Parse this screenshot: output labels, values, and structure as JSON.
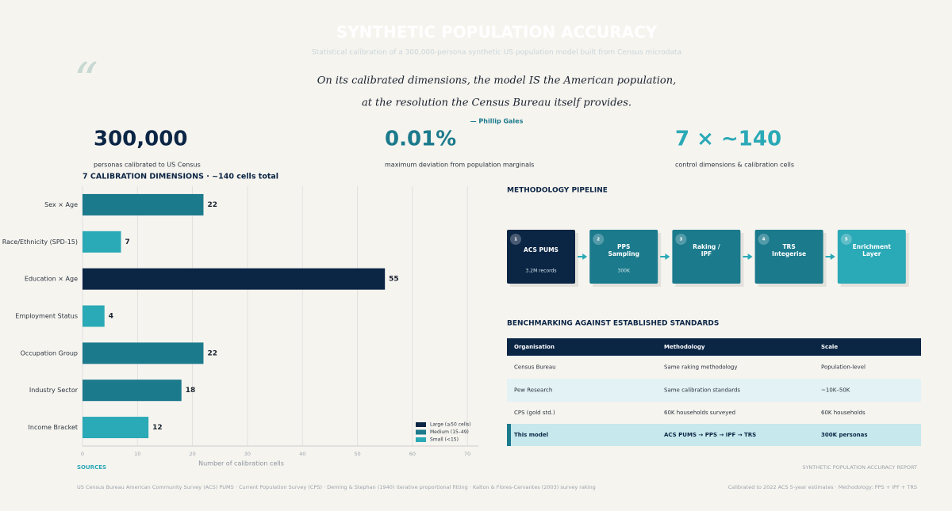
{
  "header": {
    "title": "SYNTHETIC POPULATION ACCURACY",
    "subtitle": "Statistical calibration of a 300,000-persona synthetic US population model built from Census microdata"
  },
  "quote": {
    "lines": [
      "On its calibrated dimensions, the model  IS  the American population,",
      "at the resolution the Census Bureau itself provides."
    ],
    "author": "— Phillip Gales"
  },
  "stats": [
    {
      "value": "300,000",
      "label": "personas calibrated to US Census",
      "color": "#0b2545"
    },
    {
      "value": "0.01%",
      "label": "maximum deviation from population marginals",
      "color": "#1b7a8c"
    },
    {
      "value": "7 × ~140",
      "label": "control dimensions & calibration cells",
      "color": "#2aa9b6"
    }
  ],
  "chart_data": {
    "type": "hbar",
    "title": "7 CALIBRATION DIMENSIONS  ·  ~140 cells total",
    "categories": [
      "Sex × Age",
      "Race/Ethnicity (SPD-15)",
      "Education × Age",
      "Employment Status",
      "Occupation Group",
      "Industry Sector",
      "Income Bracket"
    ],
    "values": [
      22,
      7,
      55,
      4,
      22,
      18,
      12
    ],
    "colors": [
      "#1b7a8c",
      "#2aa9b6",
      "#0b2545",
      "#2aa9b6",
      "#1b7a8c",
      "#1b7a8c",
      "#2aa9b6"
    ],
    "xlabel": "Number of calibration cells",
    "xlim": [
      0,
      72
    ],
    "xticks": [
      0,
      10,
      20,
      30,
      40,
      50,
      60,
      70
    ],
    "grid": true,
    "legend": [
      {
        "label": "Large (≥50 cells)",
        "color": "#0b2545"
      },
      {
        "label": "Medium (15–49)",
        "color": "#1b7a8c"
      },
      {
        "label": "Small (<15)",
        "color": "#2aa9b6"
      }
    ]
  },
  "pipeline": {
    "title": "METHODOLOGY PIPELINE",
    "steps": [
      {
        "num": "1",
        "lines": [
          "ACS PUMS"
        ],
        "sub": "3.2M records",
        "color": "#0b2545"
      },
      {
        "num": "2",
        "lines": [
          "PPS",
          "Sampling"
        ],
        "sub": "300K",
        "color": "#1b7a8c"
      },
      {
        "num": "3",
        "lines": [
          "Raking /",
          "IPF"
        ],
        "color": "#1b7a8c"
      },
      {
        "num": "4",
        "lines": [
          "TRS",
          "Integerise"
        ],
        "color": "#1b7a8c"
      },
      {
        "num": "5",
        "lines": [
          "Enrichment",
          "Layer"
        ],
        "color": "#2aa9b6"
      }
    ]
  },
  "table": {
    "title": "BENCHMARKING AGAINST ESTABLISHED STANDARDS",
    "columns": [
      "Organisation",
      "Methodology",
      "Scale"
    ],
    "rows": [
      [
        "Census Bureau",
        "Same raking methodology",
        "Population-level"
      ],
      [
        "Pew Research",
        "Same calibration standards",
        "~10K–50K"
      ],
      [
        "CPS (gold std.)",
        "60K households surveyed",
        "60K households"
      ],
      [
        "This model",
        "ACS PUMS → PPS → IPF → TRS",
        "300K personas"
      ]
    ]
  },
  "footer": {
    "sources_title": "SOURCES",
    "report": "SYNTHETIC POPULATION ACCURACY REPORT",
    "sources": "US Census Bureau American Community Survey (ACS) PUMS  ·  Current Population Survey (CPS)  ·  Deming & Stephan (1940) iterative proportional fitting  ·  Kalton & Flores-Cervantes (2003) survey raking",
    "note": "Calibrated to 2022 ACS 5-year estimates  ·  Methodology: PPS + IPF + TRS"
  }
}
